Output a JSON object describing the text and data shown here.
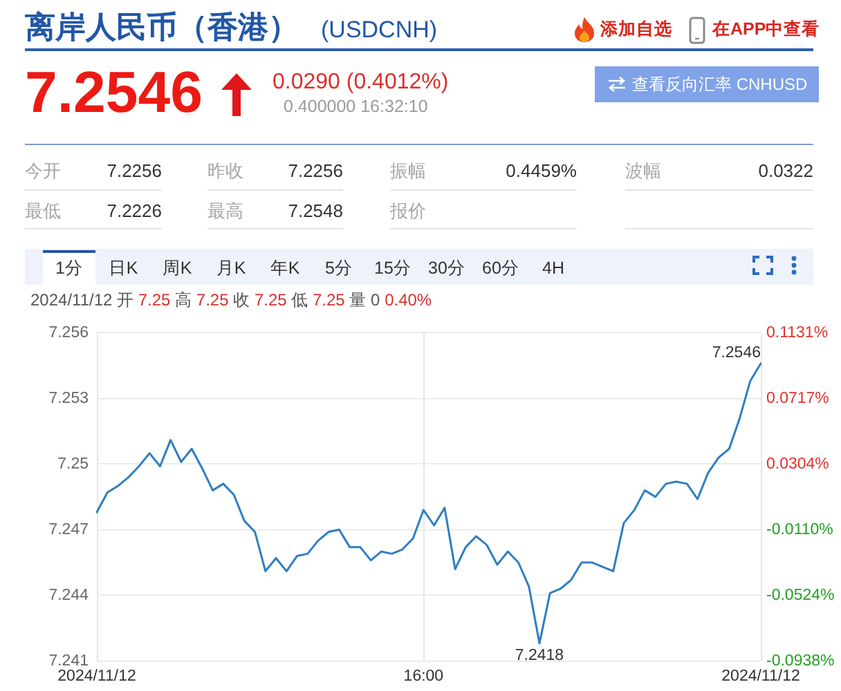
{
  "chart_data": {
    "type": "line",
    "title": "离岸人民币（香港）",
    "subtitle": "(USDCNH)",
    "categories": [
      "2024/11/12",
      null,
      null,
      null,
      null,
      null,
      null,
      null,
      null,
      null,
      null,
      null,
      null,
      null,
      null,
      null,
      null,
      null,
      null,
      null,
      null,
      null,
      null,
      null,
      null,
      null,
      null,
      null,
      null,
      null,
      null,
      "16:00",
      null,
      null,
      null,
      null,
      null,
      null,
      null,
      null,
      null,
      null,
      null,
      null,
      null,
      null,
      null,
      null,
      null,
      null,
      null,
      null,
      null,
      null,
      null,
      null,
      null,
      null,
      null,
      null,
      null,
      null,
      null,
      "2024/11/12"
    ],
    "values": [
      7.2478,
      7.2487,
      7.249,
      7.2494,
      7.2499,
      7.2505,
      7.2499,
      7.2511,
      7.2501,
      7.2507,
      7.2498,
      7.2488,
      7.2491,
      7.2486,
      7.2474,
      7.2469,
      7.2451,
      7.2457,
      7.2451,
      7.2458,
      7.2459,
      7.2465,
      7.2469,
      7.247,
      7.2462,
      7.2462,
      7.2456,
      7.246,
      7.2459,
      7.2461,
      7.2466,
      7.2479,
      7.2472,
      7.248,
      7.2452,
      7.2462,
      7.2467,
      7.2463,
      7.2454,
      7.246,
      7.2455,
      7.2444,
      7.2418,
      7.2441,
      7.2443,
      7.2447,
      7.2455,
      7.2455,
      7.2453,
      7.2451,
      7.2473,
      7.2479,
      7.2488,
      7.2485,
      7.2491,
      7.2492,
      7.2491,
      7.2484,
      7.2496,
      7.2503,
      7.2507,
      7.2521,
      7.2538,
      7.2546
    ],
    "color": "#2f7ec2",
    "ylim": [
      7.241,
      7.256
    ],
    "yticks": [
      7.241,
      7.244,
      7.247,
      7.25,
      7.253,
      7.256
    ],
    "y2lim": [
      -0.0938,
      0.1131
    ],
    "y2ticks": [
      {
        "value": -0.0938,
        "label": "-0.0938%"
      },
      {
        "value": -0.0524,
        "label": "-0.0524%"
      },
      {
        "value": -0.011,
        "label": "-0.0110%"
      },
      {
        "value": 0.0304,
        "label": "0.0304%"
      },
      {
        "value": 0.0717,
        "label": "0.0717%"
      },
      {
        "value": 0.1131,
        "label": "0.1131%"
      }
    ],
    "grid": true,
    "legend": false,
    "marker": "none",
    "line_style": "solid",
    "annotations": [
      "添加自选",
      "在APP中查看",
      "7.2546",
      "0.0290 (0.4012%)",
      "0.400000 16:32:10",
      "查看反向汇率 CNHUSD",
      "今开",
      "7.2256",
      "昨收",
      "7.2256",
      "振幅",
      "0.4459%",
      "波幅",
      "0.0322",
      "最低",
      "7.2226",
      "最高",
      "7.2548",
      "报价",
      "1分",
      "日K",
      "周K",
      "月K",
      "年K",
      "5分",
      "15分",
      "30分",
      "60分",
      "4H",
      "2024/11/12",
      "开",
      "7.25",
      "高",
      "7.25",
      "收",
      "7.25",
      "低",
      "7.25",
      "量",
      "0",
      "0.40%",
      "7.2546",
      {
        "text": "7.2418",
        "y": 7.2418
      }
    ]
  }
}
